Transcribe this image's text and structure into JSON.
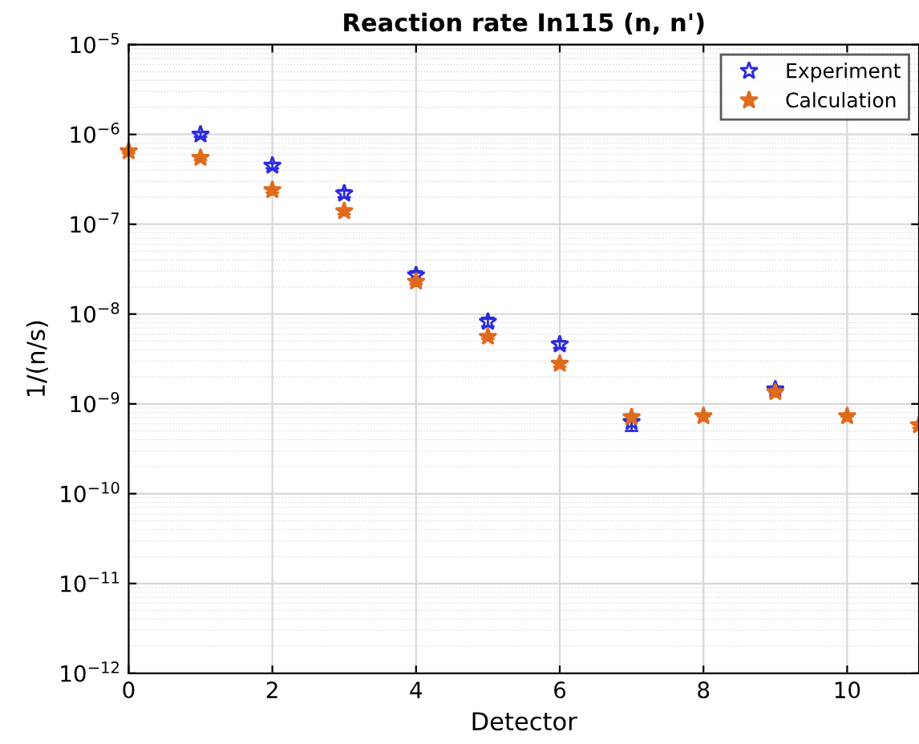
{
  "chart_data": {
    "type": "scatter",
    "title": "Reaction rate In115 (n, n')",
    "xlabel": "Detector",
    "ylabel": "1/(n/s)",
    "x": [
      0,
      1,
      2,
      3,
      4,
      5,
      6,
      7,
      8,
      9,
      10,
      11
    ],
    "series": [
      {
        "name": "Experiment",
        "color": "#2a2ae0",
        "values": [
          null,
          1e-06,
          4.5e-07,
          2.2e-07,
          2.7e-08,
          8.2e-09,
          4.6e-09,
          6.3e-10,
          null,
          1.45e-09,
          null,
          null
        ],
        "errors": [
          null,
          6e-08,
          3e-08,
          2e-08,
          3e-09,
          9e-10,
          4e-10,
          1.3e-10,
          null,
          null,
          null,
          null
        ]
      },
      {
        "name": "Calculation",
        "color": "#e06a1c",
        "values": [
          6.5e-07,
          5.5e-07,
          2.4e-07,
          1.4e-07,
          2.3e-08,
          5.6e-09,
          2.8e-09,
          7.1e-10,
          7.3e-10,
          1.35e-09,
          7.3e-10,
          5.8e-10
        ],
        "errors": [
          3e-08,
          3e-08,
          1.5e-08,
          1e-08,
          1.5e-09,
          3e-10,
          2e-10,
          5e-11,
          null,
          null,
          null,
          4e-11
        ]
      }
    ],
    "log": "y",
    "xlim": [
      0,
      11
    ],
    "xticks": [
      0,
      2,
      4,
      6,
      8,
      10
    ],
    "ylim": [
      1e-12,
      1e-05
    ],
    "yticks": [
      {
        "value": 1e-12,
        "label": "10$^{−12}$"
      },
      {
        "value": 1e-11,
        "label": "10$^{−11}$"
      },
      {
        "value": 1e-10,
        "label": "10$^{−10}$"
      },
      {
        "value": 1e-09,
        "label": "10$^{−9}$"
      },
      {
        "value": 1e-08,
        "label": "10$^{−8}$"
      },
      {
        "value": 1e-07,
        "label": "10$^{−7}$"
      },
      {
        "value": 1e-06,
        "label": "10$^{−6}$"
      },
      {
        "value": 1e-05,
        "label": "10$^{−5}$"
      }
    ],
    "grid": true,
    "legend": "top right",
    "marker": "star"
  }
}
